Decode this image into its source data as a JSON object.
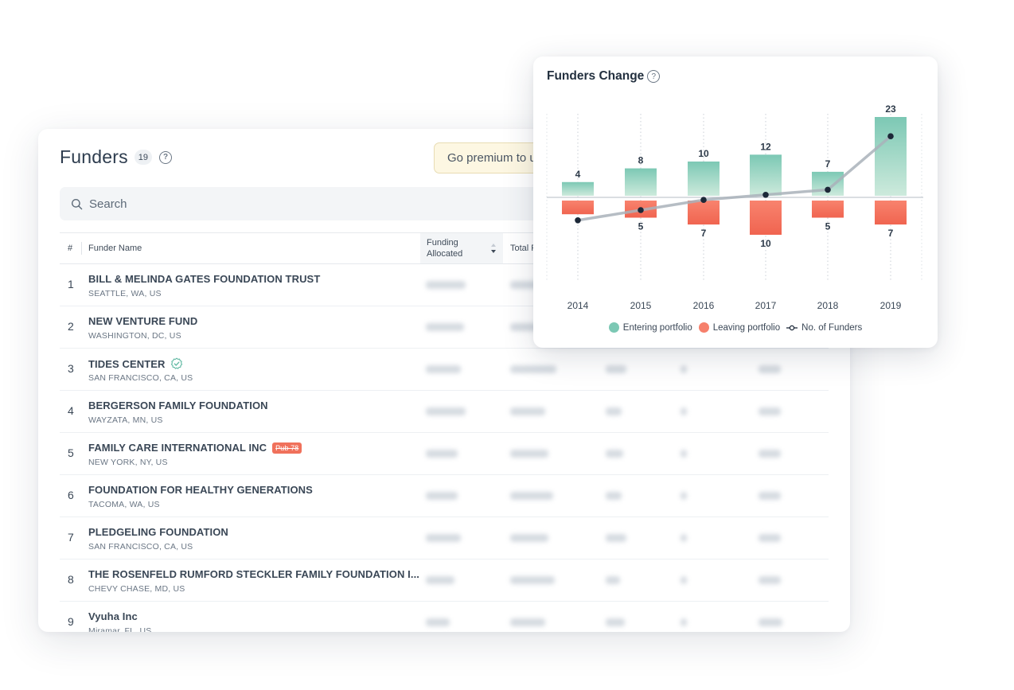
{
  "funders": {
    "title": "Funders",
    "count": "19",
    "help": "?",
    "premium_text": "Go premium to u",
    "search_placeholder": "Search",
    "columns": {
      "num": "#",
      "name": "Funder Name",
      "allocated": "Funding Allocated",
      "total": "Total Fundi"
    },
    "rows": [
      {
        "num": "1",
        "name": "BILL & MELINDA GATES FOUNDATION TRUST",
        "location": "SEATTLE, WA, US"
      },
      {
        "num": "2",
        "name": "NEW VENTURE FUND",
        "location": "WASHINGTON, DC, US"
      },
      {
        "num": "3",
        "name": "TIDES CENTER",
        "location": "SAN FRANCISCO, CA, US",
        "verified": true
      },
      {
        "num": "4",
        "name": "BERGERSON FAMILY FOUNDATION",
        "location": "WAYZATA, MN, US"
      },
      {
        "num": "5",
        "name": "FAMILY CARE INTERNATIONAL INC",
        "location": "NEW YORK, NY, US",
        "badge": "Pub 78"
      },
      {
        "num": "6",
        "name": "FOUNDATION FOR HEALTHY GENERATIONS",
        "location": "TACOMA, WA, US"
      },
      {
        "num": "7",
        "name": "PLEDGELING FOUNDATION",
        "location": "SAN FRANCISCO, CA, US"
      },
      {
        "num": "8",
        "name": "THE ROSENFELD RUMFORD STECKLER FAMILY FOUNDATION I...",
        "location": "CHEVY CHASE, MD, US"
      },
      {
        "num": "9",
        "name": "Vyuha Inc",
        "location": "Miramar, FL, US"
      }
    ]
  },
  "chart": {
    "title": "Funders Change",
    "help": "?",
    "legend": {
      "entering": "Entering portfolio",
      "leaving": "Leaving portfolio",
      "line": "No. of Funders"
    },
    "colors": {
      "entering_top": "#7cc8b4",
      "entering_bottom": "#cdeadc",
      "leaving_top": "#f8836e",
      "leaving_bottom": "#f06450",
      "line": "#a9b1ba",
      "point": "#1c2838"
    }
  },
  "chart_data": {
    "type": "bar",
    "categories": [
      "2014",
      "2015",
      "2016",
      "2017",
      "2018",
      "2019"
    ],
    "series": [
      {
        "name": "Entering portfolio",
        "values": [
          4,
          8,
          10,
          12,
          7,
          23
        ]
      },
      {
        "name": "Leaving portfolio",
        "values": [
          4,
          5,
          7,
          10,
          5,
          7
        ]
      },
      {
        "name": "No. of Funders",
        "type": "line",
        "values": [
          -9,
          -5,
          -1,
          1,
          3,
          24
        ]
      }
    ],
    "data_labels": {
      "entering": [
        "4",
        "8",
        "10",
        "12",
        "7",
        "23"
      ],
      "leaving": [
        "",
        "5",
        "7",
        "10",
        "5",
        "7"
      ]
    },
    "title": "Funders Change",
    "xlabel": "",
    "ylabel": "",
    "legend_position": "bottom-center",
    "grid": "vertical-dotted"
  }
}
